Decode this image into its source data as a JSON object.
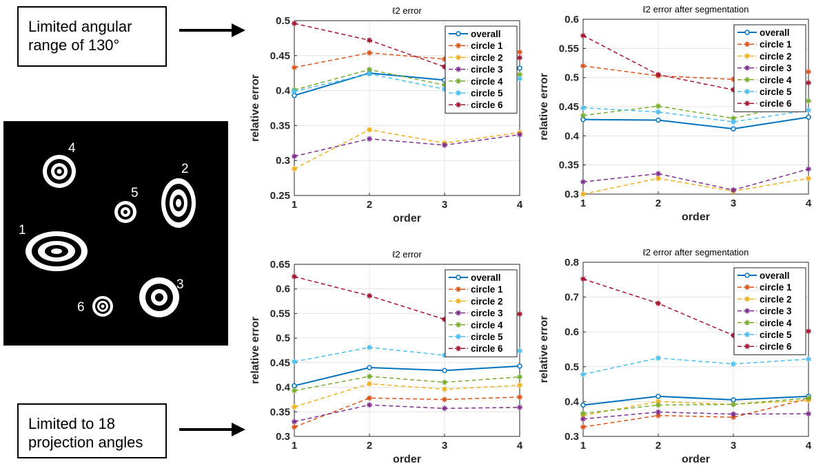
{
  "annotations": {
    "top_label": [
      "Limited angular",
      "range of 130°"
    ],
    "bottom_label": [
      "Limited to 18",
      "projection angles"
    ]
  },
  "phantom": {
    "numbers": [
      "4",
      "2",
      "5",
      "1",
      "3",
      "6"
    ]
  },
  "colors": {
    "overall": "#0072BD",
    "circle 1": "#D95319",
    "circle 2": "#EDB120",
    "circle 3": "#7E2F8E",
    "circle 4": "#77AC30",
    "circle 5": "#4DBEEE",
    "circle 6": "#A2142F"
  },
  "chart_data": [
    {
      "type": "line",
      "title": "ℓ2 error",
      "xlabel": "order",
      "ylabel": "relative error",
      "x": [
        1,
        2,
        3,
        4
      ],
      "ylim": [
        0.25,
        0.5
      ],
      "yticks": [
        "0.25",
        "0.3",
        "0.35",
        "0.4",
        "0.45",
        "0.5"
      ],
      "grid": true,
      "legend": "top-right",
      "series": [
        {
          "name": "overall",
          "values": [
            0.393,
            0.425,
            0.415,
            0.432
          ]
        },
        {
          "name": "circle 1",
          "values": [
            0.433,
            0.454,
            0.445,
            0.455
          ]
        },
        {
          "name": "circle 2",
          "values": [
            0.288,
            0.344,
            0.325,
            0.34
          ]
        },
        {
          "name": "circle 3",
          "values": [
            0.306,
            0.331,
            0.322,
            0.337
          ]
        },
        {
          "name": "circle 4",
          "values": [
            0.401,
            0.43,
            0.408,
            0.423
          ]
        },
        {
          "name": "circle 5",
          "values": [
            0.399,
            0.424,
            0.402,
            0.417
          ]
        },
        {
          "name": "circle 6",
          "values": [
            0.496,
            0.472,
            0.434,
            0.447
          ]
        }
      ]
    },
    {
      "type": "line",
      "title": "ℓ2 error after segmentation",
      "xlabel": "order",
      "ylabel": "relative error",
      "x": [
        1,
        2,
        3,
        4
      ],
      "ylim": [
        0.3,
        0.6
      ],
      "yticks": [
        "0.3",
        "0.35",
        "0.4",
        "0.45",
        "0.5",
        "0.55",
        "0.6"
      ],
      "grid": true,
      "legend": "top-right",
      "series": [
        {
          "name": "overall",
          "values": [
            0.428,
            0.427,
            0.412,
            0.432
          ]
        },
        {
          "name": "circle 1",
          "values": [
            0.52,
            0.503,
            0.497,
            0.51
          ]
        },
        {
          "name": "circle 2",
          "values": [
            0.3,
            0.327,
            0.305,
            0.327
          ]
        },
        {
          "name": "circle 3",
          "values": [
            0.321,
            0.335,
            0.307,
            0.343
          ]
        },
        {
          "name": "circle 4",
          "values": [
            0.435,
            0.451,
            0.43,
            0.46
          ]
        },
        {
          "name": "circle 5",
          "values": [
            0.448,
            0.441,
            0.424,
            0.444
          ]
        },
        {
          "name": "circle 6",
          "values": [
            0.572,
            0.505,
            0.479,
            0.491
          ]
        }
      ]
    },
    {
      "type": "line",
      "title": "ℓ2 error",
      "xlabel": "order",
      "ylabel": "relative error",
      "x": [
        1,
        2,
        3,
        4
      ],
      "ylim": [
        0.3,
        0.65
      ],
      "yticks": [
        "0.3",
        "0.35",
        "0.4",
        "0.45",
        "0.5",
        "0.55",
        "0.6",
        "0.65"
      ],
      "grid": true,
      "legend": "top-right",
      "series": [
        {
          "name": "overall",
          "values": [
            0.403,
            0.44,
            0.434,
            0.443
          ]
        },
        {
          "name": "circle 1",
          "values": [
            0.319,
            0.378,
            0.375,
            0.38
          ]
        },
        {
          "name": "circle 2",
          "values": [
            0.36,
            0.407,
            0.396,
            0.404
          ]
        },
        {
          "name": "circle 3",
          "values": [
            0.33,
            0.364,
            0.357,
            0.359
          ]
        },
        {
          "name": "circle 4",
          "values": [
            0.393,
            0.422,
            0.41,
            0.421
          ]
        },
        {
          "name": "circle 5",
          "values": [
            0.452,
            0.481,
            0.465,
            0.474
          ]
        },
        {
          "name": "circle 6",
          "values": [
            0.625,
            0.586,
            0.538,
            0.549
          ]
        }
      ]
    },
    {
      "type": "line",
      "title": "ℓ2 error after segmentation",
      "xlabel": "order",
      "ylabel": "relative error",
      "x": [
        1,
        2,
        3,
        4
      ],
      "ylim": [
        0.3,
        0.8
      ],
      "yticks": [
        "0.3",
        "0.4",
        "0.5",
        "0.6",
        "0.7",
        "0.8"
      ],
      "grid": true,
      "legend": "top-right",
      "series": [
        {
          "name": "overall",
          "values": [
            0.39,
            0.415,
            0.405,
            0.415
          ]
        },
        {
          "name": "circle 1",
          "values": [
            0.327,
            0.36,
            0.355,
            0.408
          ]
        },
        {
          "name": "circle 2",
          "values": [
            0.36,
            0.4,
            0.392,
            0.404
          ]
        },
        {
          "name": "circle 3",
          "values": [
            0.35,
            0.37,
            0.364,
            0.365
          ]
        },
        {
          "name": "circle 4",
          "values": [
            0.366,
            0.39,
            0.392,
            0.41
          ]
        },
        {
          "name": "circle 5",
          "values": [
            0.478,
            0.525,
            0.508,
            0.522
          ]
        },
        {
          "name": "circle 6",
          "values": [
            0.752,
            0.682,
            0.59,
            0.602
          ]
        }
      ]
    }
  ]
}
